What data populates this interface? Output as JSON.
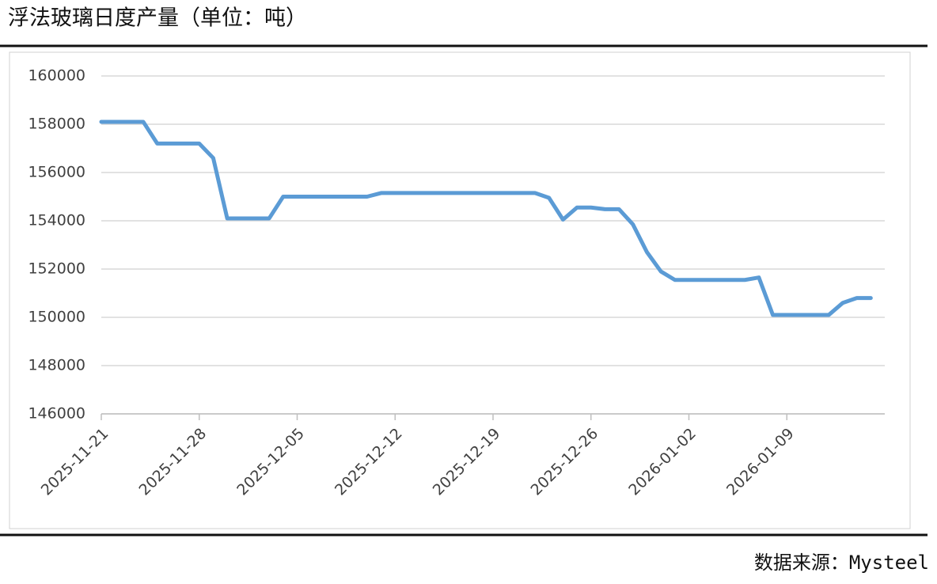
{
  "chart_data": {
    "type": "line",
    "title": "浮法玻璃日度产量（单位：吨）",
    "source": "数据来源：Mysteel",
    "x": [
      "2025-11-21",
      "2025-11-22",
      "2025-11-23",
      "2025-11-24",
      "2025-11-25",
      "2025-11-26",
      "2025-11-27",
      "2025-11-28",
      "2025-11-29",
      "2025-11-30",
      "2025-12-01",
      "2025-12-02",
      "2025-12-03",
      "2025-12-04",
      "2025-12-05",
      "2025-12-06",
      "2025-12-07",
      "2025-12-08",
      "2025-12-09",
      "2025-12-10",
      "2025-12-11",
      "2025-12-12",
      "2025-12-13",
      "2025-12-14",
      "2025-12-15",
      "2025-12-16",
      "2025-12-17",
      "2025-12-18",
      "2025-12-19",
      "2025-12-20",
      "2025-12-21",
      "2025-12-22",
      "2025-12-23",
      "2025-12-24",
      "2025-12-25",
      "2025-12-26",
      "2025-12-27",
      "2025-12-28",
      "2025-12-29",
      "2025-12-30",
      "2025-12-31",
      "2026-01-01",
      "2026-01-02",
      "2026-01-03",
      "2026-01-04",
      "2026-01-05",
      "2026-01-06",
      "2026-01-07",
      "2026-01-08",
      "2026-01-09",
      "2026-01-10",
      "2026-01-11",
      "2026-01-12",
      "2026-01-13",
      "2026-01-14",
      "2026-01-15"
    ],
    "series": [
      {
        "color": "#5b9bd5",
        "values": [
          158100,
          158100,
          158100,
          158100,
          157200,
          157200,
          157200,
          157200,
          156600,
          154100,
          154100,
          154100,
          154100,
          155000,
          155000,
          155000,
          155000,
          155000,
          155000,
          155000,
          155150,
          155150,
          155150,
          155150,
          155150,
          155150,
          155150,
          155150,
          155150,
          155150,
          155150,
          155150,
          154950,
          154050,
          154550,
          154550,
          154480,
          154480,
          153850,
          152700,
          151900,
          151550,
          151550,
          151550,
          151550,
          151550,
          151550,
          151650,
          150100,
          150100,
          150100,
          150100,
          150100,
          150600,
          150800,
          150800
        ]
      }
    ],
    "xlim": [
      "2025-11-21",
      "2026-01-16"
    ],
    "xticks": [
      "2025-11-21",
      "2025-11-28",
      "2025-12-05",
      "2025-12-12",
      "2025-12-19",
      "2025-12-26",
      "2026-01-02",
      "2026-01-09"
    ],
    "ylim": [
      146000,
      160000
    ],
    "yticks": [
      146000,
      148000,
      150000,
      152000,
      154000,
      156000,
      158000,
      160000
    ],
    "grid": true
  }
}
